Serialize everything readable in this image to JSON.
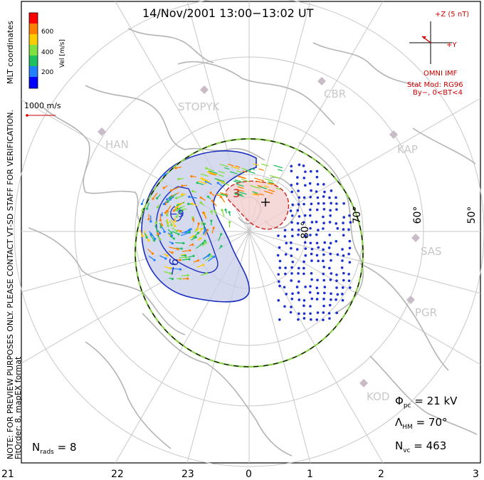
{
  "title": "14/Nov/2001 13:00−13:02 UT",
  "side_note": "NOTE: FOR PREVIEW PURPOSES ONLY. PLEASE CONTACT VT-SD STAFF FOR VERIFICATION.",
  "fit_order": "FitOrder: 8,  mapEX format",
  "mlt_coords": "MLT coordinates",
  "vel_scale": {
    "label": "Vel [m/s]",
    "ticks": [
      "600",
      "400",
      "200"
    ],
    "colors": [
      "#ff0000",
      "#ff8000",
      "#ffcc00",
      "#80e040",
      "#20c060",
      "#2080ff",
      "#0000ff"
    ]
  },
  "ref_vector": "1000 m/s",
  "imf": {
    "z_label": "+Z (5 nT)",
    "y_label": "+Y",
    "source": "OMNI IMF",
    "model_line1": "Stat Mod: RG96",
    "model_line2": "By−, 0<BT<4"
  },
  "stations": [
    "STOPYK",
    "CBR",
    "HAN",
    "KAP",
    "SAS",
    "PGR",
    "KOD"
  ],
  "lat_labels": [
    "80°",
    "70°",
    "60°",
    "50°"
  ],
  "mlt_labels": [
    "21",
    "22",
    "23",
    "0",
    "1",
    "2",
    "3"
  ],
  "contours": {
    "neg_label": "−9",
    "neg_label2": "−6",
    "pos_label": "3"
  },
  "stats": {
    "phi_pc_label": "Φ",
    "phi_pc_sub": "pc",
    "phi_pc_value": " =  21 kV",
    "lambda_label": "Λ",
    "lambda_sub": "HM",
    "lambda_value": " =  70°",
    "nvc_label": "N",
    "nvc_sub": "vc",
    "nvc_value": " =  463",
    "nrads_label": "N",
    "nrads_sub": "rads",
    "nrads_value": " =  8"
  },
  "colors": {
    "coast": "#b4b4b4",
    "grid": "#c8c8c8",
    "neg_fill": "#c8cde8",
    "neg_line": "#1a2fbf",
    "pos_fill": "#f2cfcf",
    "pos_line": "#cc2222",
    "vector_blue": "#1a2fd0",
    "annot_red": "#cc0000"
  }
}
